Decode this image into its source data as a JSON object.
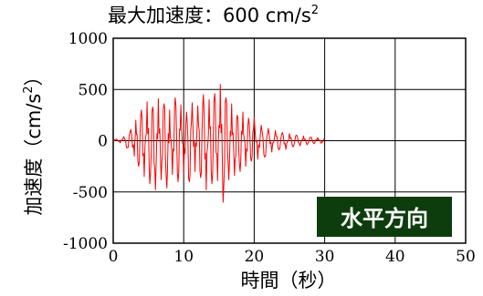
{
  "chart_data": {
    "type": "line",
    "title": "最大加速度：600 cm/s",
    "title_superscript": "2",
    "xlabel": "時間（秒）",
    "ylabel": "加速度（cm/s",
    "ylabel_superscript": "2",
    "ylabel_suffix": "）",
    "xlim": [
      0,
      50
    ],
    "ylim": [
      -1000,
      1000
    ],
    "x_ticks": [
      0,
      10,
      20,
      30,
      40,
      50
    ],
    "y_ticks": [
      1000,
      500,
      0,
      -500,
      -1000
    ],
    "x_tick_labels": [
      "0",
      "10",
      "20",
      "30",
      "40",
      "50"
    ],
    "y_tick_labels": [
      "1000",
      "500",
      "0",
      "-500",
      "-1000"
    ],
    "grid": true,
    "annotation": "水平方向",
    "series": [
      {
        "color": "#ff0000",
        "x": [
          0,
          0.5,
          1,
          1.5,
          2,
          2.5,
          3,
          3.2,
          3.6,
          4,
          4.4,
          4.8,
          5.2,
          5.6,
          6,
          6.4,
          6.8,
          7.2,
          7.6,
          8,
          8.4,
          8.8,
          9.2,
          9.6,
          10,
          10.4,
          10.8,
          11.2,
          11.6,
          12,
          12.4,
          12.8,
          13.2,
          13.6,
          14,
          14.4,
          14.8,
          15.2,
          15.6,
          16,
          16.4,
          16.8,
          17.2,
          17.6,
          18,
          18.4,
          18.8,
          19.2,
          19.6,
          20,
          20.5,
          21,
          21.5,
          22,
          22.5,
          23,
          23.5,
          24,
          24.5,
          25,
          25.5,
          26,
          26.5,
          27,
          27.5,
          28,
          28.5,
          29,
          29.5,
          30
        ],
        "values": [
          0,
          15,
          -20,
          40,
          -70,
          110,
          -150,
          200,
          -250,
          300,
          -350,
          380,
          -420,
          330,
          -480,
          410,
          -380,
          360,
          -460,
          300,
          -330,
          420,
          -400,
          350,
          -320,
          280,
          -400,
          370,
          -300,
          340,
          -360,
          450,
          -480,
          400,
          -420,
          460,
          -390,
          550,
          -600,
          420,
          -380,
          360,
          -340,
          250,
          -300,
          280,
          -250,
          220,
          -200,
          230,
          -180,
          150,
          -160,
          120,
          -110,
          100,
          -90,
          80,
          -85,
          70,
          -60,
          55,
          -50,
          45,
          -40,
          35,
          -30,
          30,
          -25,
          20
        ]
      }
    ]
  },
  "colors": {
    "line": "#ff0000",
    "badge_bg": "#0d3d0d",
    "badge_text": "#ffffff",
    "grid": "#000000"
  }
}
